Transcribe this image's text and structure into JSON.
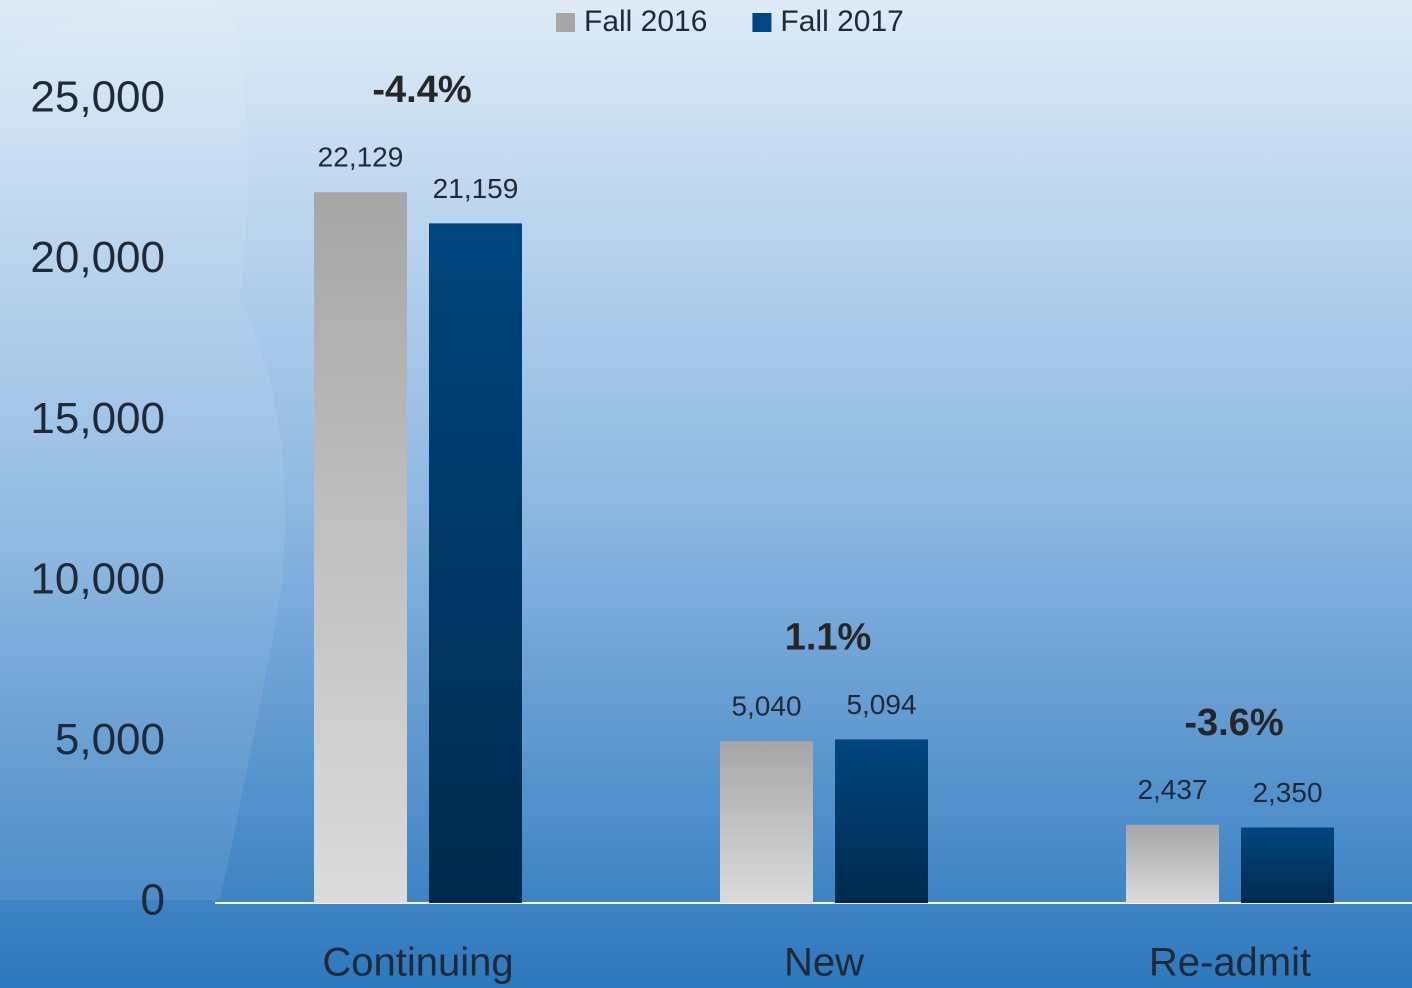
{
  "chart_data": {
    "type": "bar",
    "categories": [
      "Continuing",
      "New",
      "Re-admit"
    ],
    "series": [
      {
        "name": "Fall 2016",
        "color": "#a6a6a6",
        "values": [
          22129,
          5040,
          2437
        ],
        "value_labels": [
          "22,129",
          "5,040",
          "2,437"
        ]
      },
      {
        "name": "Fall 2017",
        "color": "#00467f",
        "values": [
          21159,
          5094,
          2350
        ],
        "value_labels": [
          "21,159",
          "5,094",
          "2,350"
        ]
      }
    ],
    "annotations": [
      "-4.4%",
      "1.1%",
      "-3.6%"
    ],
    "ylim": [
      0,
      25000
    ],
    "yticks": [
      0,
      {
        "value": 5000,
        "label": "5,000"
      },
      {
        "value": 10000,
        "label": "10,000"
      },
      {
        "value": 15000,
        "label": "15,000"
      },
      {
        "value": 20000,
        "label": "20,000"
      },
      {
        "value": 25000,
        "label": "25,000"
      }
    ],
    "legend": "top"
  }
}
